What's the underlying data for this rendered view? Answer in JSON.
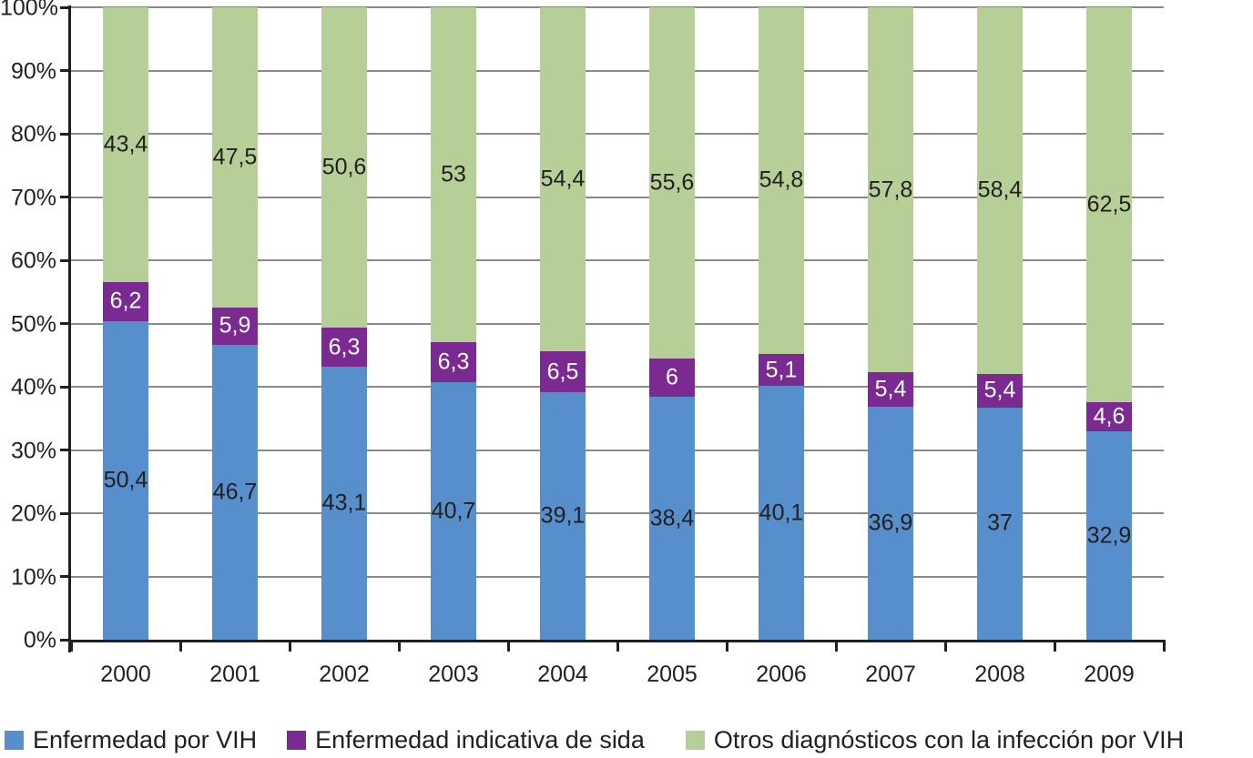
{
  "chart_data": {
    "type": "bar",
    "variant": "stacked-100-percent",
    "categories": [
      "2000",
      "2001",
      "2002",
      "2003",
      "2004",
      "2005",
      "2006",
      "2007",
      "2008",
      "2009"
    ],
    "series": [
      {
        "name": "Enfermedad por VIH",
        "color": "#568fcb",
        "label_color": "#231f20",
        "values": [
          50.4,
          46.7,
          43.1,
          40.7,
          39.1,
          38.4,
          40.1,
          36.9,
          37,
          32.9
        ],
        "labels": [
          "50,4",
          "46,7",
          "43,1",
          "40,7",
          "39,1",
          "38,4",
          "40,1",
          "36,9",
          "37",
          "32,9"
        ]
      },
      {
        "name": "Enfermedad indicativa de sida",
        "color": "#7a2a90",
        "label_color": "#ffffff",
        "values": [
          6.2,
          5.9,
          6.3,
          6.3,
          6.5,
          6,
          5.1,
          5.4,
          5.4,
          4.6
        ],
        "labels": [
          "6,2",
          "5,9",
          "6,3",
          "6,3",
          "6,5",
          "6",
          "5,1",
          "5,4",
          "5,4",
          "4,6"
        ]
      },
      {
        "name": "Otros diagnósticos con la infección por VIH",
        "color": "#b5cf97",
        "label_color": "#231f20",
        "values": [
          43.4,
          47.5,
          50.6,
          53,
          54.4,
          55.6,
          54.8,
          57.8,
          58.4,
          62.5
        ],
        "labels": [
          "43,4",
          "47,5",
          "50,6",
          "53",
          "54,4",
          "55,6",
          "54,8",
          "57,8",
          "58,4",
          "62,5"
        ]
      }
    ],
    "y_axis": {
      "min": 0,
      "max": 100,
      "tick_labels": [
        "0%",
        "10%",
        "20%",
        "30%",
        "40%",
        "50%",
        "60%",
        "70%",
        "80%",
        "90%",
        "100%"
      ]
    },
    "grid": true,
    "legend_position": "bottom",
    "grid_color": "#8a8a8c",
    "axis_color": "#231f20",
    "text_color": "#231f20"
  }
}
